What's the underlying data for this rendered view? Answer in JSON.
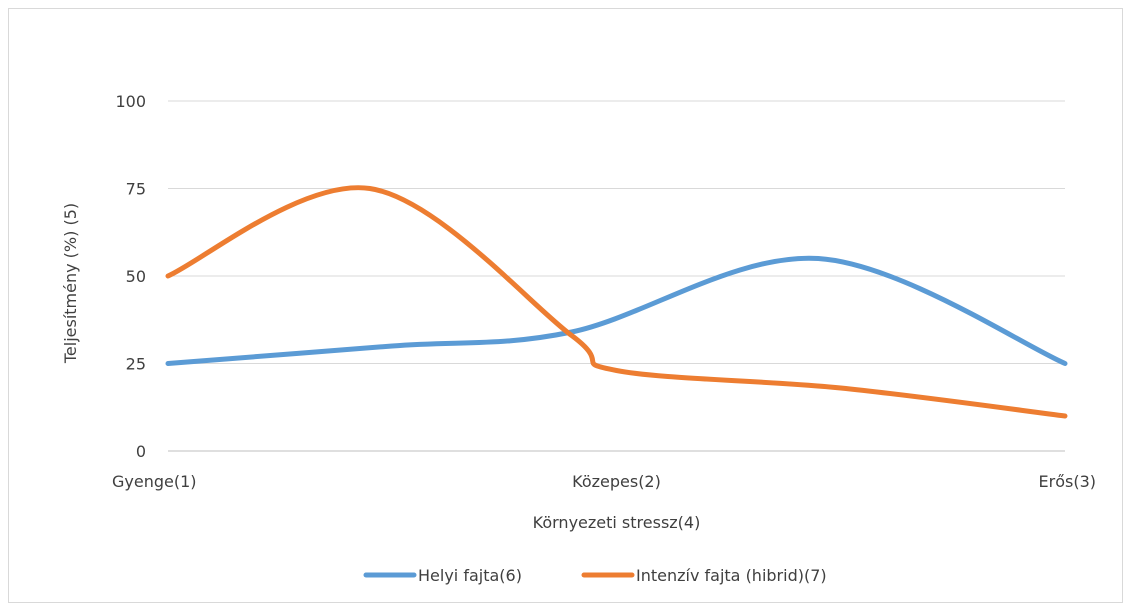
{
  "chart_data": {
    "type": "line",
    "title": "",
    "xlabel": "Környezeti stressz(4)",
    "ylabel": "Teljesítmény (%) (5)",
    "ylim": [
      0,
      100
    ],
    "yticks": [
      0,
      25,
      50,
      75,
      100
    ],
    "ytick_labels": [
      "0",
      "25",
      "50",
      "75",
      "100"
    ],
    "x_domain": [
      0,
      2
    ],
    "categories": [
      "Gyenge(1)",
      "Közepes(2)",
      "Erős(3)"
    ],
    "category_positions": [
      0,
      1,
      2
    ],
    "grid": true,
    "legend_position": "bottom",
    "series": [
      {
        "name": "Helyi fajta(6)",
        "color": "#5B9BD5",
        "smooth": true,
        "x": [
          0,
          0.5,
          0.9,
          1.45,
          2
        ],
        "y": [
          25,
          30,
          34,
          55,
          25
        ]
      },
      {
        "name": "Intenzív fajta (hibrid)(7)",
        "color": "#ED7D31",
        "smooth": true,
        "x": [
          0,
          0.45,
          0.9,
          1.0,
          1.5,
          2
        ],
        "y": [
          50,
          75,
          33,
          23,
          18,
          10
        ]
      }
    ]
  }
}
